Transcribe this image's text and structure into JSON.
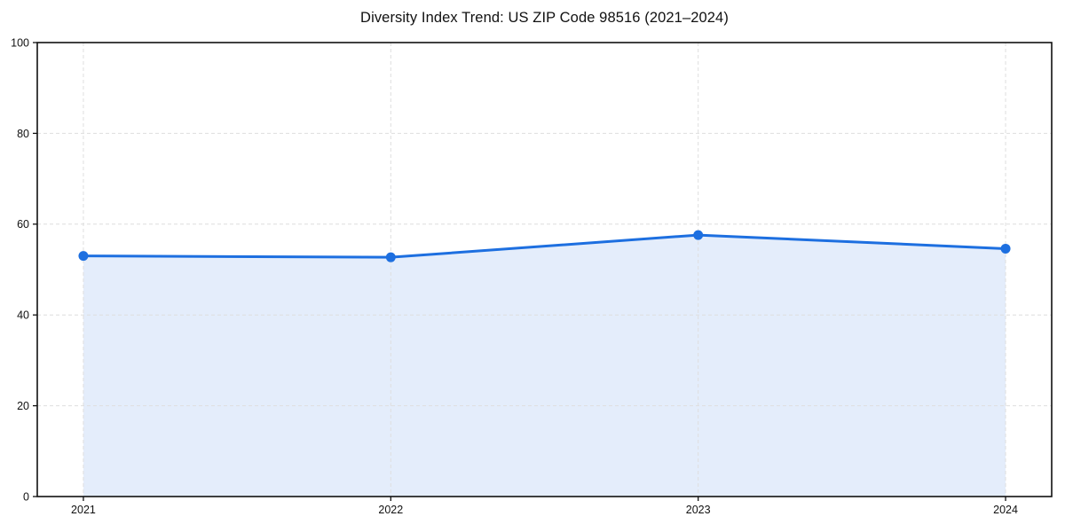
{
  "title": "Diversity Index Trend: US ZIP Code 98516 (2021–2024)",
  "chart_data": {
    "type": "line",
    "title": "Diversity Index Trend: US ZIP Code 98516 (2021–2024)",
    "categories": [
      "2021",
      "2022",
      "2023",
      "2024"
    ],
    "series": [
      {
        "name": "Diversity Index",
        "values": [
          53.0,
          52.7,
          57.6,
          54.6
        ]
      }
    ],
    "xlabel": "",
    "ylabel": "",
    "ylim": [
      0,
      100
    ],
    "yticks": [
      0,
      20,
      40,
      60,
      80,
      100
    ],
    "grid": "dashed-both-axes",
    "legend_position": "none",
    "area_fill_under_line": true,
    "marker_style": "filled-circle",
    "colors": {
      "line": "#1d6fe0",
      "marker": "#1d6fe0",
      "area_fill": "#e4edfb",
      "grid": "#dedede",
      "axis": "#111111",
      "tick_text": "#111111",
      "background": "#ffffff"
    }
  }
}
